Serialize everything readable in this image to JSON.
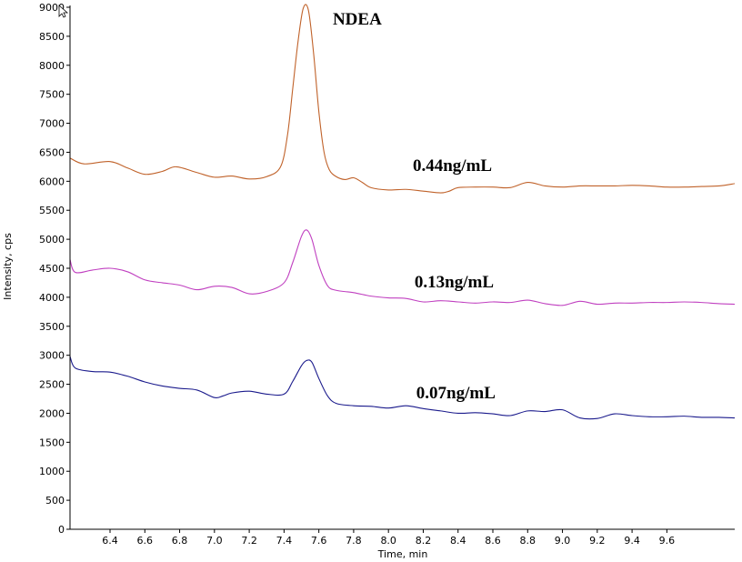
{
  "chart_data": {
    "type": "line",
    "title": "",
    "xlabel": "Time, min",
    "ylabel": "Intensity, cps",
    "xlim": [
      6.17,
      9.99
    ],
    "ylim": [
      0,
      9000
    ],
    "grid": false,
    "x_ticks": [
      "6.4",
      "6.6",
      "6.8",
      "7.0",
      "7.2",
      "7.4",
      "7.6",
      "7.8",
      "8.0",
      "8.2",
      "8.4",
      "8.6",
      "8.8",
      "9.0",
      "9.2",
      "9.4",
      "9.6"
    ],
    "y_ticks": [
      "0",
      "500",
      "1000",
      "1500",
      "2000",
      "2500",
      "3000",
      "3500",
      "4000",
      "4500",
      "5000",
      "5500",
      "6000",
      "6500",
      "7000",
      "7500",
      "8000",
      "8500",
      "9000"
    ],
    "annotations": [
      {
        "text": "NDEA",
        "x": 7.68,
        "y": 8700
      },
      {
        "text": "0.44ng/mL",
        "x": 8.14,
        "y": 6180
      },
      {
        "text": "0.13ng/mL",
        "x": 8.15,
        "y": 4170
      },
      {
        "text": "0.07ng/mL",
        "x": 8.16,
        "y": 2260
      }
    ],
    "series": [
      {
        "color": "#c0622a",
        "x": [
          6.17,
          6.25,
          6.4,
          6.5,
          6.6,
          6.7,
          6.78,
          6.9,
          7.0,
          7.1,
          7.2,
          7.3,
          7.38,
          7.42,
          7.45,
          7.48,
          7.51,
          7.54,
          7.57,
          7.6,
          7.63,
          7.66,
          7.7,
          7.75,
          7.8,
          7.85,
          7.9,
          8.0,
          8.1,
          8.2,
          8.3,
          8.35,
          8.4,
          8.5,
          8.6,
          8.7,
          8.8,
          8.9,
          9.0,
          9.1,
          9.2,
          9.3,
          9.4,
          9.5,
          9.6,
          9.7,
          9.8,
          9.9,
          9.99
        ],
        "y": [
          6400,
          6300,
          6340,
          6230,
          6120,
          6170,
          6250,
          6150,
          6070,
          6090,
          6040,
          6080,
          6250,
          6800,
          7600,
          8400,
          8980,
          8950,
          8200,
          7200,
          6500,
          6200,
          6080,
          6030,
          6060,
          5980,
          5890,
          5850,
          5860,
          5830,
          5800,
          5830,
          5890,
          5900,
          5900,
          5890,
          5980,
          5920,
          5900,
          5920,
          5920,
          5920,
          5930,
          5920,
          5900,
          5900,
          5910,
          5920,
          5960
        ]
      },
      {
        "color": "#c040c0",
        "x": [
          6.17,
          6.2,
          6.3,
          6.4,
          6.5,
          6.6,
          6.7,
          6.8,
          6.9,
          7.0,
          7.1,
          7.2,
          7.3,
          7.4,
          7.45,
          7.5,
          7.53,
          7.56,
          7.6,
          7.65,
          7.7,
          7.8,
          7.9,
          8.0,
          8.1,
          8.2,
          8.3,
          8.4,
          8.5,
          8.6,
          8.7,
          8.8,
          8.9,
          9.0,
          9.1,
          9.2,
          9.3,
          9.4,
          9.5,
          9.6,
          9.7,
          9.8,
          9.9,
          9.99
        ],
        "y": [
          4650,
          4430,
          4470,
          4500,
          4440,
          4300,
          4250,
          4210,
          4130,
          4190,
          4170,
          4060,
          4100,
          4250,
          4600,
          5050,
          5160,
          5000,
          4550,
          4200,
          4120,
          4080,
          4020,
          3990,
          3980,
          3920,
          3940,
          3920,
          3900,
          3920,
          3910,
          3950,
          3890,
          3860,
          3930,
          3880,
          3900,
          3900,
          3910,
          3910,
          3920,
          3910,
          3890,
          3880
        ]
      },
      {
        "color": "#1a1a8c",
        "x": [
          6.17,
          6.2,
          6.3,
          6.4,
          6.5,
          6.6,
          6.7,
          6.8,
          6.9,
          7.0,
          7.05,
          7.1,
          7.2,
          7.3,
          7.4,
          7.45,
          7.5,
          7.53,
          7.56,
          7.6,
          7.65,
          7.7,
          7.8,
          7.9,
          8.0,
          8.1,
          8.2,
          8.3,
          8.4,
          8.5,
          8.6,
          8.7,
          8.8,
          8.9,
          9.0,
          9.1,
          9.2,
          9.3,
          9.4,
          9.5,
          9.6,
          9.7,
          9.8,
          9.9,
          9.99
        ],
        "y": [
          2980,
          2780,
          2720,
          2710,
          2640,
          2540,
          2470,
          2430,
          2400,
          2270,
          2300,
          2350,
          2380,
          2330,
          2330,
          2550,
          2820,
          2910,
          2880,
          2600,
          2300,
          2170,
          2130,
          2120,
          2090,
          2130,
          2080,
          2040,
          2000,
          2010,
          1990,
          1960,
          2040,
          2030,
          2060,
          1920,
          1910,
          1990,
          1960,
          1940,
          1940,
          1950,
          1930,
          1930,
          1920
        ]
      }
    ]
  }
}
